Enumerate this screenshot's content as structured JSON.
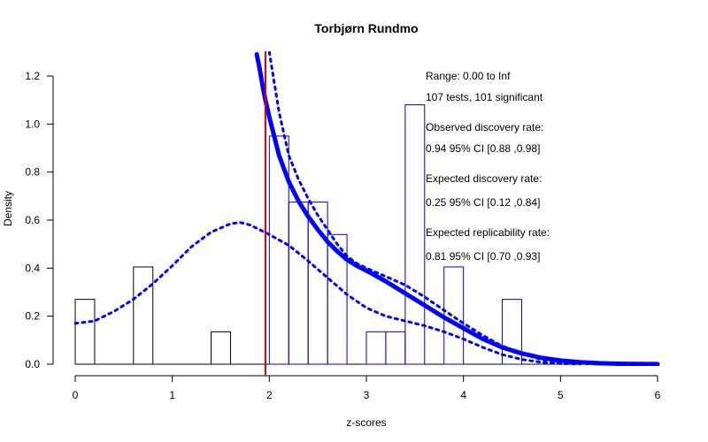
{
  "chart_data": {
    "type": "histogram",
    "title": "Torbjørn Rundmo",
    "xlabel": "z-scores",
    "ylabel": "Density",
    "xlim": [
      0,
      6
    ],
    "ylim": [
      0,
      1.2
    ],
    "x_ticks": [
      "0",
      "1",
      "2",
      "3",
      "4",
      "5",
      "6"
    ],
    "y_ticks": [
      "0.0",
      "0.2",
      "0.4",
      "0.6",
      "0.8",
      "1.0",
      "1.2"
    ],
    "criterion_line": {
      "x": 1.96,
      "color": "#dd0000"
    },
    "histogram_bins": [
      {
        "x0": 0.0,
        "x1": 0.2,
        "density": 0.27,
        "color": "#000000"
      },
      {
        "x0": 0.6,
        "x1": 0.8,
        "density": 0.405,
        "color": "#000000"
      },
      {
        "x0": 1.4,
        "x1": 1.6,
        "density": 0.135,
        "color": "#000000"
      },
      {
        "x0": 2.0,
        "x1": 2.2,
        "density": 0.95,
        "color": "#0000cc"
      },
      {
        "x0": 2.2,
        "x1": 2.4,
        "density": 0.675,
        "color": "#0000cc"
      },
      {
        "x0": 2.4,
        "x1": 2.6,
        "density": 0.675,
        "color": "#0000cc"
      },
      {
        "x0": 2.6,
        "x1": 2.8,
        "density": 0.54,
        "color": "#0000cc"
      },
      {
        "x0": 3.0,
        "x1": 3.2,
        "density": 0.135,
        "color": "#0000cc"
      },
      {
        "x0": 3.2,
        "x1": 3.4,
        "density": 0.135,
        "color": "#0000cc"
      },
      {
        "x0": 3.4,
        "x1": 3.6,
        "density": 1.08,
        "color": "#0000cc"
      },
      {
        "x0": 3.8,
        "x1": 4.0,
        "density": 0.405,
        "color": "#0000cc"
      },
      {
        "x0": 4.4,
        "x1": 4.6,
        "density": 0.27,
        "color": "#0000cc"
      }
    ],
    "series": [
      {
        "style": "solid-thick",
        "color": "#0000ff",
        "x": [
          1.87,
          1.9,
          1.93,
          1.96,
          2.0,
          2.05,
          2.1,
          2.2,
          2.3,
          2.4,
          2.5,
          2.6,
          2.7,
          2.8,
          2.9,
          3.0,
          3.2,
          3.4,
          3.6,
          3.8,
          4.0,
          4.2,
          4.4,
          4.6,
          4.8,
          5.0,
          5.2,
          5.4,
          5.6,
          5.8,
          6.0
        ],
        "y": [
          1.29,
          1.23,
          1.16,
          1.1,
          1.03,
          0.95,
          0.87,
          0.76,
          0.68,
          0.615,
          0.56,
          0.51,
          0.47,
          0.435,
          0.41,
          0.39,
          0.345,
          0.295,
          0.245,
          0.195,
          0.15,
          0.105,
          0.07,
          0.045,
          0.027,
          0.015,
          0.008,
          0.004,
          0.002,
          0.001,
          0.0005
        ]
      },
      {
        "style": "dotted",
        "color": "#0000ff",
        "x": [
          2.0,
          2.1,
          2.2,
          2.3,
          2.4,
          2.5,
          2.6,
          2.7,
          2.8,
          2.9,
          3.0,
          3.2,
          3.4,
          3.6,
          3.8,
          4.0,
          4.2,
          4.4,
          4.6,
          4.8,
          5.0,
          5.2,
          5.4,
          5.6
        ],
        "y": [
          1.3,
          1.05,
          0.87,
          0.77,
          0.69,
          0.62,
          0.56,
          0.5,
          0.45,
          0.42,
          0.4,
          0.365,
          0.33,
          0.28,
          0.225,
          0.17,
          0.12,
          0.075,
          0.045,
          0.02,
          0.008,
          0.003,
          0.001,
          0.0005
        ]
      },
      {
        "style": "dotted",
        "color": "#0000ff",
        "x": [
          0.0,
          0.2,
          0.4,
          0.6,
          0.8,
          1.0,
          1.2,
          1.4,
          1.6,
          1.7,
          1.8,
          2.0,
          2.2,
          2.4,
          2.6,
          2.8,
          3.0,
          3.2,
          3.4,
          3.6,
          3.8,
          4.0,
          4.2,
          4.4,
          4.6,
          4.8,
          5.0,
          5.2
        ],
        "y": [
          0.17,
          0.18,
          0.22,
          0.27,
          0.335,
          0.41,
          0.49,
          0.55,
          0.585,
          0.59,
          0.58,
          0.54,
          0.495,
          0.43,
          0.36,
          0.29,
          0.235,
          0.2,
          0.18,
          0.16,
          0.135,
          0.105,
          0.07,
          0.04,
          0.02,
          0.008,
          0.003,
          0.001
        ]
      }
    ],
    "annotations": [
      "Range: 0.00 to Inf",
      "107 tests, 101 significant",
      "Observed discovery rate:",
      "0.94  95% CI [0.88 ,0.98]",
      "Expected discovery rate:",
      "0.25  95% CI [0.12 ,0.84]",
      "Expected replicability rate:",
      "0.81  95% CI [0.70 ,0.93]"
    ]
  }
}
